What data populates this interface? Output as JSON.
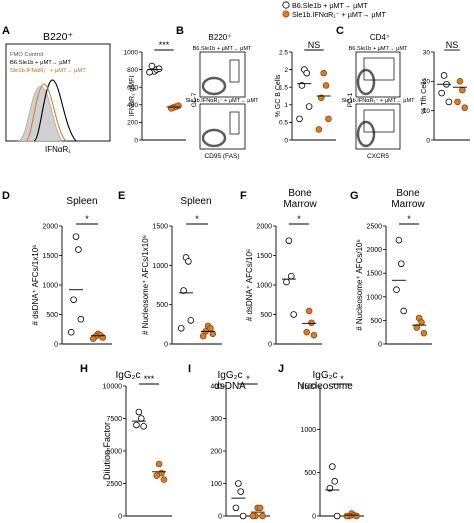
{
  "legend": {
    "items": [
      {
        "label": "B6.Sle1b + µMT→ µMT",
        "color": "#ffffff"
      },
      {
        "label": "Sle1b.IFNαR₁⁻ + µMT→ µMT",
        "color": "#e07b1f"
      }
    ]
  },
  "colors": {
    "wt": "#ffffff",
    "ko": "#e07b1f",
    "ko_light": "#f2a25a"
  },
  "panels": {
    "A": {
      "letter": "A",
      "title": "B220⁺",
      "xlabel": "IFNαR₁",
      "legend": [
        "FMO Control",
        "B6.Sle1b + µMT→ µMT",
        "Sle1b.IFNαR₁⁻ + µMT→ µMT"
      ]
    },
    "B": {
      "letter": "B",
      "title": "B220⁺",
      "gate_top": "B6.Sle1b + µMT→ µMT",
      "gate_bottom": "Sle1b.IFNαR₁⁻ + µMT→ µMT",
      "xlabel": "CD95 (FAS)",
      "ylabel": "GL-7"
    },
    "C": {
      "letter": "C",
      "title": "CD4⁺",
      "gate_top": "B6.Sle1b + µMT→ µMT",
      "gate_bottom": "Sle1b.IFNαR₁⁻ + µMT→ µMT",
      "xlabel": "CXCR5",
      "ylabel": "PD-1"
    },
    "D": {
      "letter": "D",
      "title": "Spleen"
    },
    "E": {
      "letter": "E",
      "title": "Spleen"
    },
    "F": {
      "letter": "F",
      "title": "Bone\nMarrow"
    },
    "G": {
      "letter": "G",
      "title": "Bone\nMarrow"
    },
    "H": {
      "letter": "H",
      "title": "IgG₂c"
    },
    "I": {
      "letter": "I",
      "title": "IgG₂c\ndsDNA"
    },
    "J": {
      "letter": "J",
      "title": "IgG₂c\nNucleosome"
    }
  },
  "chart_data": [
    {
      "id": "A-bar",
      "type": "scatter",
      "ylabel": "IFNαR₁ gMFI",
      "ylim": [
        0,
        1000
      ],
      "yticks": [
        0,
        200,
        400,
        600,
        800,
        1000
      ],
      "sig": "***",
      "series": [
        {
          "name": "B6.Sle1b + µMT→ µMT",
          "values": [
            780,
            800,
            840,
            810,
            770
          ],
          "mean": 800
        },
        {
          "name": "Sle1b.IFNαR₁⁻ + µMT→ µMT",
          "values": [
            370,
            380,
            360,
            390
          ],
          "mean": 375
        }
      ]
    },
    {
      "id": "B-bar",
      "type": "scatter",
      "ylabel": "% GC B Cells",
      "ylim": [
        0,
        2.5
      ],
      "yticks": [
        0,
        0.5,
        1.0,
        1.5,
        2.0,
        2.5
      ],
      "sig": "NS",
      "series": [
        {
          "name": "B6.Sle1b + µMT→ µMT",
          "values": [
            2.0,
            1.9,
            1.55,
            0.95,
            0.6
          ],
          "mean": 1.6
        },
        {
          "name": "Sle1b.IFNαR₁⁻ + µMT→ µMT",
          "values": [
            1.9,
            1.55,
            1.2,
            0.6,
            0.3
          ],
          "mean": 1.25
        }
      ]
    },
    {
      "id": "C-bar",
      "type": "scatter",
      "ylabel": "% Tfh Cells",
      "ylim": [
        0,
        30
      ],
      "yticks": [
        0,
        10,
        20,
        30
      ],
      "sig": "NS",
      "series": [
        {
          "name": "B6.Sle1b + µMT→ µMT",
          "values": [
            22,
            19,
            16,
            13
          ],
          "mean": 19
        },
        {
          "name": "Sle1b.IFNαR₁⁻ + µMT→ µMT",
          "values": [
            20,
            17,
            13,
            11
          ],
          "mean": 18
        }
      ]
    },
    {
      "id": "D",
      "type": "scatter",
      "ylabel": "# dsDNA⁺ AFCs/1x10⁶",
      "ylim": [
        0,
        2000
      ],
      "yticks": [
        0,
        500,
        1000,
        1500,
        2000
      ],
      "sig": "*",
      "series": [
        {
          "name": "B6.Sle1b + µMT→ µMT",
          "values": [
            1820,
            1600,
            750,
            420,
            200
          ],
          "mean": 920
        },
        {
          "name": "Sle1b.IFNαR₁⁻ + µMT→ µMT",
          "values": [
            170,
            150,
            130,
            110,
            90
          ],
          "mean": 140
        }
      ]
    },
    {
      "id": "E",
      "type": "scatter",
      "ylabel": "# Nucleosome⁺ AFCs/1x10⁶",
      "ylim": [
        0,
        1500
      ],
      "yticks": [
        0,
        500,
        1000,
        1500
      ],
      "sig": "*",
      "series": [
        {
          "name": "B6.Sle1b + µMT→ µMT",
          "values": [
            1100,
            1050,
            680,
            300,
            200
          ],
          "mean": 650
        },
        {
          "name": "Sle1b.IFNαR₁⁻ + µMT→ µMT",
          "values": [
            230,
            200,
            160,
            130,
            100
          ],
          "mean": 160
        }
      ]
    },
    {
      "id": "F",
      "type": "scatter",
      "ylabel": "# dsDNA⁺ AFCs/10⁶",
      "ylim": [
        0,
        2000
      ],
      "yticks": [
        0,
        500,
        1000,
        1500,
        2000
      ],
      "sig": "*",
      "series": [
        {
          "name": "B6.Sle1b + µMT→ µMT",
          "values": [
            1750,
            1150,
            1050,
            500
          ],
          "mean": 1100
        },
        {
          "name": "Sle1b.IFNαR₁⁻ + µMT→ µMT",
          "values": [
            560,
            360,
            200,
            150
          ],
          "mean": 350
        }
      ]
    },
    {
      "id": "G",
      "type": "scatter",
      "ylabel": "# Nucleosome⁺ AFCs/10⁶",
      "ylim": [
        0,
        2500
      ],
      "yticks": [
        0,
        500,
        1000,
        1500,
        2000,
        2500
      ],
      "sig": "*",
      "series": [
        {
          "name": "B6.Sle1b + µMT→ µMT",
          "values": [
            2200,
            1700,
            1150,
            700
          ],
          "mean": 1350
        },
        {
          "name": "Sle1b.IFNαR₁⁻ + µMT→ µMT",
          "values": [
            550,
            460,
            350,
            230
          ],
          "mean": 400
        }
      ]
    },
    {
      "id": "H",
      "type": "scatter",
      "ylabel": "Dilution Factor",
      "ylim": [
        0,
        10000
      ],
      "yticks": [
        0,
        2500,
        5000,
        7500,
        10000
      ],
      "sig": "***",
      "series": [
        {
          "name": "B6.Sle1b + µMT→ µMT",
          "values": [
            8000,
            7500,
            7000,
            6900
          ],
          "mean": 7300
        },
        {
          "name": "Sle1b.IFNαR₁⁻ + µMT→ µMT",
          "values": [
            4000,
            3300,
            3100,
            2800
          ],
          "mean": 3400
        }
      ]
    },
    {
      "id": "I",
      "type": "scatter",
      "ylabel": "",
      "ylim": [
        0,
        400
      ],
      "yticks": [
        0,
        100,
        200,
        300,
        400
      ],
      "sig": "*",
      "series": [
        {
          "name": "B6.Sle1b + µMT→ µMT",
          "values": [
            100,
            75,
            25,
            0
          ],
          "mean": 55
        },
        {
          "name": "Sle1b.IFNαR₁⁻ + µMT→ µMT",
          "values": [
            25,
            25,
            0,
            0,
            0
          ],
          "mean": 12
        }
      ]
    },
    {
      "id": "J",
      "type": "scatter",
      "ylabel": "",
      "ylim": [
        0,
        1500
      ],
      "yticks": [
        0,
        500,
        1000,
        1500
      ],
      "sig": "*",
      "series": [
        {
          "name": "B6.Sle1b + µMT→ µMT",
          "values": [
            570,
            400,
            320,
            0
          ],
          "mean": 300
        },
        {
          "name": "Sle1b.IFNαR₁⁻ + µMT→ µMT",
          "values": [
            30,
            10,
            0,
            0,
            0
          ],
          "mean": 10
        }
      ]
    }
  ]
}
